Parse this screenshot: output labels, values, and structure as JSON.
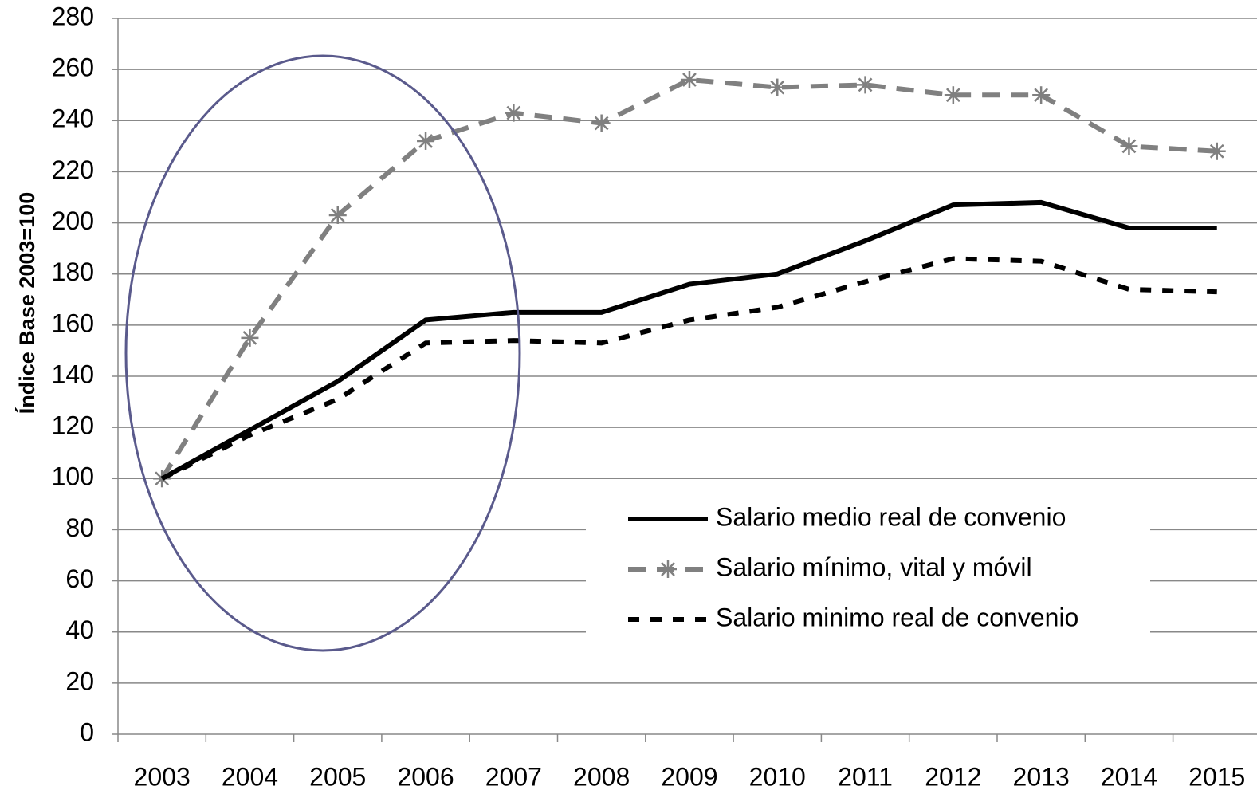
{
  "chart_data": {
    "type": "line",
    "y_label": "Índice Base 2003=100",
    "categories": [
      "2003",
      "2004",
      "2005",
      "2006",
      "2007",
      "2008",
      "2009",
      "2010",
      "2011",
      "2012",
      "2013",
      "2014",
      "2015"
    ],
    "series": [
      {
        "name": "Salario medio real de convenio",
        "color": "#000000",
        "dash": "solid",
        "marker": "none",
        "values": [
          100,
          119,
          138,
          162,
          165,
          165,
          176,
          180,
          193,
          207,
          208,
          198,
          198
        ]
      },
      {
        "name": "Salario mínimo, vital y móvil",
        "color": "#808080",
        "dash": "dash",
        "marker": "asterisk",
        "values": [
          100,
          155,
          203,
          232,
          243,
          239,
          256,
          253,
          254,
          250,
          250,
          230,
          228
        ]
      },
      {
        "name": "Salario minimo real de convenio",
        "color": "#000000",
        "dash": "dot",
        "marker": "none",
        "values": [
          100,
          117,
          131,
          153,
          154,
          153,
          162,
          167,
          177,
          186,
          185,
          174,
          173
        ]
      }
    ],
    "ylim": [
      0,
      280
    ],
    "yticks": [
      0,
      20,
      40,
      60,
      80,
      100,
      120,
      140,
      160,
      180,
      200,
      220,
      240,
      260,
      280
    ],
    "grid": true
  }
}
